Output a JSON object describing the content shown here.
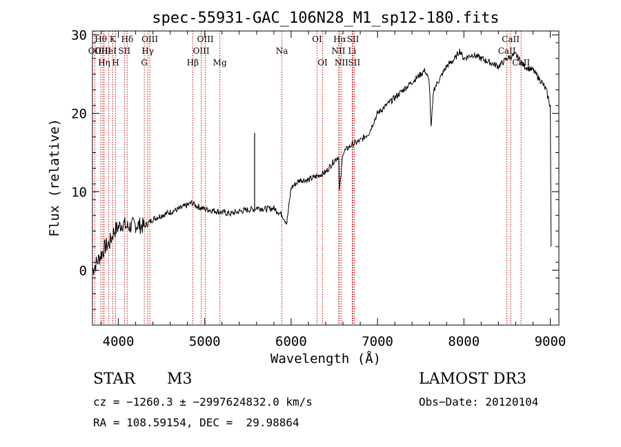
{
  "chart_data": {
    "type": "line",
    "title": "spec-55931-GAC_106N28_M1_sp12-180.fits",
    "xlabel": "Wavelength (Å)",
    "ylabel": "Flux (relative)",
    "xlim": [
      3700,
      9100
    ],
    "ylim": [
      -7,
      30.5
    ],
    "xticks": [
      4000,
      5000,
      6000,
      7000,
      8000,
      9000
    ],
    "yticks": [
      0,
      10,
      20,
      30
    ],
    "grid": false,
    "series": [
      {
        "x": [
          3700,
          3750,
          3800,
          3850,
          3900,
          3950,
          4000,
          4050,
          4100,
          4200,
          4300,
          4400,
          4500,
          4600,
          4700,
          4800,
          4850,
          4900,
          5000,
          5100,
          5200,
          5300,
          5400,
          5500,
          5580,
          5600,
          5700,
          5800,
          5900,
          5950,
          6000,
          6050,
          6100,
          6200,
          6300,
          6400,
          6500,
          6550,
          6560,
          6600,
          6700,
          6800,
          6900,
          7000,
          7100,
          7200,
          7300,
          7400,
          7500,
          7550,
          7600,
          7620,
          7650,
          7700,
          7800,
          7900,
          7950,
          8000,
          8100,
          8200,
          8300,
          8400,
          8500,
          8600,
          8700,
          8800,
          8900,
          8950,
          9000,
          9010
        ],
        "y": [
          0,
          1,
          2,
          3,
          3.5,
          5,
          5.5,
          6,
          5.5,
          5.8,
          5.6,
          6.5,
          7,
          7.4,
          7.8,
          8.3,
          8.6,
          8.2,
          7.8,
          7.6,
          7.4,
          7.2,
          7.5,
          7.7,
          7.8,
          8.0,
          7.8,
          7.9,
          7.0,
          6.0,
          10.5,
          11,
          11.5,
          11.5,
          12,
          12.5,
          14,
          14.5,
          10,
          15,
          16,
          16.5,
          17.5,
          20,
          21,
          22,
          23,
          24,
          25,
          25.5,
          24,
          18,
          23,
          24,
          26,
          27,
          28,
          27,
          27.5,
          27,
          26.5,
          26,
          27,
          27.5,
          26,
          25.5,
          24,
          23,
          21,
          3
        ]
      }
    ],
    "annotations": [
      {
        "x": 5577,
        "y": 17.5,
        "text": ""
      }
    ]
  },
  "spectral_lines": [
    {
      "wl": 3727,
      "label": "OII",
      "row": 2
    },
    {
      "wl": 3797,
      "label": "Hθ",
      "row": 1
    },
    {
      "wl": 3820,
      "label": "OIII",
      "row": 2
    },
    {
      "wl": 3835,
      "label": "Hη",
      "row": 3
    },
    {
      "wl": 3889,
      "label": "HeI",
      "row": 2
    },
    {
      "wl": 3934,
      "label": "K",
      "row": 1
    },
    {
      "wl": 3968,
      "label": "H",
      "row": 3
    },
    {
      "wl": 4070,
      "label": "SII",
      "row": 2
    },
    {
      "wl": 4102,
      "label": "Hδ",
      "row": 1
    },
    {
      "wl": 4300,
      "label": "G",
      "row": 3
    },
    {
      "wl": 4340,
      "label": "Hγ",
      "row": 2
    },
    {
      "wl": 4364,
      "label": "OIII",
      "row": 1
    },
    {
      "wl": 4861,
      "label": "Hβ",
      "row": 3
    },
    {
      "wl": 4959,
      "label": "OIII",
      "row": 2
    },
    {
      "wl": 5007,
      "label": "OIII",
      "row": 1
    },
    {
      "wl": 5175,
      "label": "Mg",
      "row": 3
    },
    {
      "wl": 5893,
      "label": "Na",
      "row": 2
    },
    {
      "wl": 6300,
      "label": "OI",
      "row": 1
    },
    {
      "wl": 6364,
      "label": "OI",
      "row": 3
    },
    {
      "wl": 6548,
      "label": "NII",
      "row": 2
    },
    {
      "wl": 6563,
      "label": "Hα",
      "row": 1
    },
    {
      "wl": 6583,
      "label": "NII",
      "row": 3
    },
    {
      "wl": 6707,
      "label": "Li",
      "row": 2
    },
    {
      "wl": 6716,
      "label": "SII",
      "row": 1
    },
    {
      "wl": 6731,
      "label": "SII",
      "row": 3
    },
    {
      "wl": 8498,
      "label": "CaII",
      "row": 2
    },
    {
      "wl": 8542,
      "label": "CaII",
      "row": 1
    },
    {
      "wl": 8662,
      "label": "CaII",
      "row": 3
    }
  ],
  "colors": {
    "line_marker": "#cc0000",
    "spectrum": "#000000",
    "axis": "#000000"
  },
  "info": {
    "class": "STAR",
    "subclass": "M3",
    "survey": "LAMOST DR3",
    "cz": "cz = −1260.3 ± −2997624832.0 km/s",
    "obs_date": "Obs−Date: 20120104",
    "coords": "RA = 108.59154, DEC =  29.98864"
  }
}
